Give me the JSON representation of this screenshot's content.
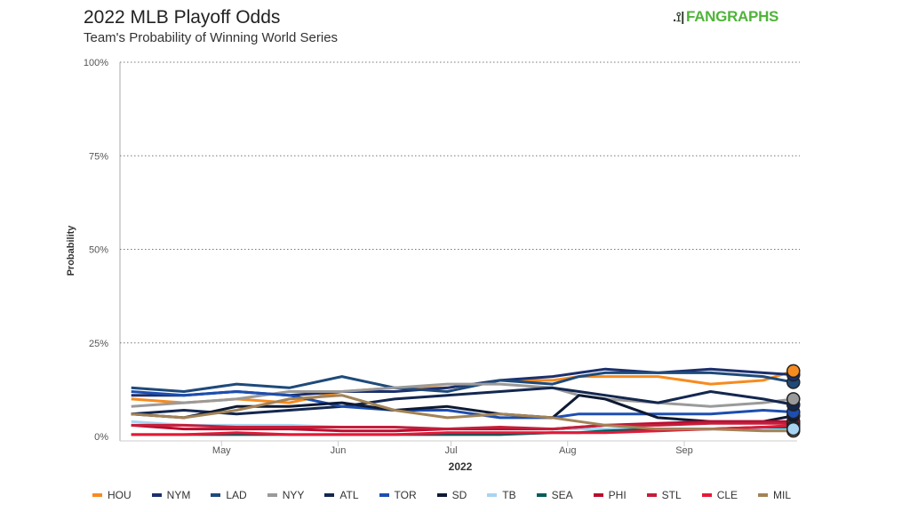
{
  "header": {
    "title": "2022 MLB Playoff Odds",
    "subtitle": "Team's Probability of Winning World Series",
    "logo_text": "FANGRAPHS"
  },
  "chart_data": {
    "type": "line",
    "title": "2022 MLB Playoff Odds",
    "subtitle": "Team's Probability of Winning World Series",
    "xlabel": "2022",
    "ylabel": "Probability",
    "xlim": [
      "2022-04-04",
      "2022-10-01"
    ],
    "ylim": [
      0,
      100
    ],
    "yticks": [
      "0%",
      "25%",
      "50%",
      "75%",
      "100%"
    ],
    "xticks": [
      {
        "label": "May",
        "date": "2022-05-01"
      },
      {
        "label": "Jun",
        "date": "2022-06-01"
      },
      {
        "label": "Jul",
        "date": "2022-07-01"
      },
      {
        "label": "Aug",
        "date": "2022-08-01"
      },
      {
        "label": "Sep",
        "date": "2022-09-01"
      }
    ],
    "grid": "horizontal-dotted",
    "legend": "bottom",
    "x": [
      "2022-04-07",
      "2022-04-21",
      "2022-05-05",
      "2022-05-19",
      "2022-06-02",
      "2022-06-16",
      "2022-06-30",
      "2022-07-14",
      "2022-07-28",
      "2022-08-04",
      "2022-08-11",
      "2022-08-25",
      "2022-09-08",
      "2022-09-22",
      "2022-09-30"
    ],
    "series": [
      {
        "name": "HOU",
        "color": "#F68B1F",
        "values": [
          10,
          9,
          10,
          9,
          12,
          13,
          13,
          15,
          15,
          16,
          16,
          16,
          14,
          15,
          17.5
        ]
      },
      {
        "name": "NYM",
        "color": "#1B2F6E",
        "values": [
          11,
          11,
          12,
          11,
          12,
          12,
          13,
          15,
          16,
          17,
          18,
          17,
          18,
          17,
          16.5
        ]
      },
      {
        "name": "LAD",
        "color": "#1E4A7A",
        "values": [
          13,
          12,
          14,
          13,
          16,
          13,
          12,
          15,
          14,
          16,
          17,
          17,
          17,
          16,
          14.5
        ]
      },
      {
        "name": "NYY",
        "color": "#9A9A9A",
        "values": [
          8,
          9,
          10,
          12,
          12,
          13,
          14,
          14,
          13,
          11,
          10,
          9,
          8,
          9,
          10
        ]
      },
      {
        "name": "ATL",
        "color": "#13274F",
        "values": [
          6,
          7,
          6,
          7,
          8,
          10,
          11,
          12,
          13,
          12,
          11,
          9,
          12,
          10,
          8.5
        ]
      },
      {
        "name": "TOR",
        "color": "#1D4EB0",
        "values": [
          12,
          11,
          12,
          11,
          8,
          7,
          7,
          5,
          5,
          6,
          6,
          6,
          6,
          7,
          6.5
        ]
      },
      {
        "name": "SD",
        "color": "#0E1A33",
        "values": [
          6,
          5,
          8,
          8,
          9,
          7,
          8,
          6,
          5,
          11,
          10,
          5,
          4,
          4,
          5.5
        ]
      },
      {
        "name": "TB",
        "color": "#A8D4F2",
        "values": [
          4,
          3,
          3,
          3,
          2.5,
          2.5,
          2,
          2,
          2,
          2,
          2,
          2,
          2,
          2,
          2
        ]
      },
      {
        "name": "SEA",
        "color": "#005C5C",
        "values": [
          0.5,
          0.5,
          0.5,
          0.5,
          0.5,
          0.5,
          0.5,
          0.5,
          1,
          1,
          1.5,
          2,
          2,
          2.5,
          2.5
        ]
      },
      {
        "name": "PHI",
        "color": "#BA0C2F",
        "values": [
          3,
          2,
          2,
          2,
          1.5,
          1.5,
          2,
          2,
          2,
          2.5,
          3,
          3.5,
          4,
          4,
          4
        ]
      },
      {
        "name": "STL",
        "color": "#C41E3A",
        "values": [
          3,
          3,
          2.5,
          2.5,
          2.5,
          2.5,
          2,
          2.5,
          2,
          2.5,
          3,
          3,
          3.5,
          3.5,
          3.5
        ]
      },
      {
        "name": "CLE",
        "color": "#E31937",
        "values": [
          0.5,
          0.5,
          1,
          0.5,
          0.5,
          0.5,
          1,
          1,
          1,
          1,
          1,
          1.5,
          2,
          2.5,
          3
        ]
      },
      {
        "name": "MIL",
        "color": "#A28357",
        "values": [
          6,
          5,
          7,
          10,
          11,
          7,
          5,
          6,
          5,
          4,
          3,
          2,
          2,
          1.5,
          1.5
        ]
      }
    ]
  }
}
